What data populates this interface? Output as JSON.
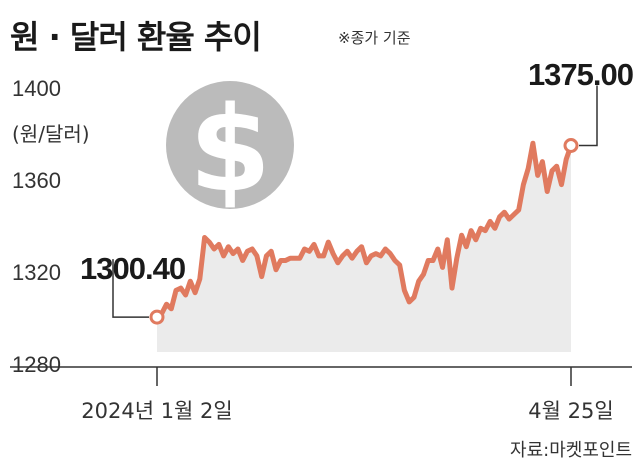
{
  "header": {
    "title": "원 · 달러 환율 추이",
    "subtitle": "※종가 기준"
  },
  "source": "자료:마켓포인트",
  "icons": {
    "coin": "dollar-coin-icon"
  },
  "colors": {
    "line": "#e07a5f",
    "area": "#ebebeb",
    "coin": "#bbbbbb"
  },
  "chart_data": {
    "type": "area",
    "title": "원 · 달러 환율 추이",
    "ylabel": "(원/달러)",
    "xlabel": "",
    "ylim": [
      1280,
      1400
    ],
    "yticks": [
      1280,
      1320,
      1360,
      1400
    ],
    "x_tick_labels": [
      "2024년 1월 2일",
      "4월 25일"
    ],
    "x_range": [
      "2024-01-02",
      "2024-04-25"
    ],
    "start_label": "1300.40",
    "end_label": "1375.00",
    "series": [
      {
        "values": [
          1300.4,
          1302,
          1306,
          1304,
          1312,
          1313,
          1310,
          1316,
          1311,
          1317,
          1335,
          1333,
          1330,
          1332,
          1327,
          1331,
          1328,
          1330,
          1325,
          1329,
          1330,
          1327,
          1318,
          1327,
          1329,
          1321,
          1325,
          1325,
          1326,
          1326,
          1326,
          1330,
          1329,
          1332,
          1327,
          1327,
          1333,
          1328,
          1324,
          1327,
          1329,
          1326,
          1329,
          1331,
          1324,
          1327,
          1328,
          1327,
          1330,
          1328,
          1325,
          1323,
          1312,
          1307,
          1309,
          1316,
          1319,
          1325,
          1325,
          1330,
          1322,
          1334,
          1313,
          1326,
          1336,
          1331,
          1338,
          1334,
          1339,
          1338,
          1342,
          1339,
          1344,
          1346,
          1343,
          1345,
          1347,
          1358,
          1365,
          1376,
          1362,
          1368,
          1355,
          1364,
          1366,
          1358,
          1369,
          1375
        ]
      }
    ]
  }
}
